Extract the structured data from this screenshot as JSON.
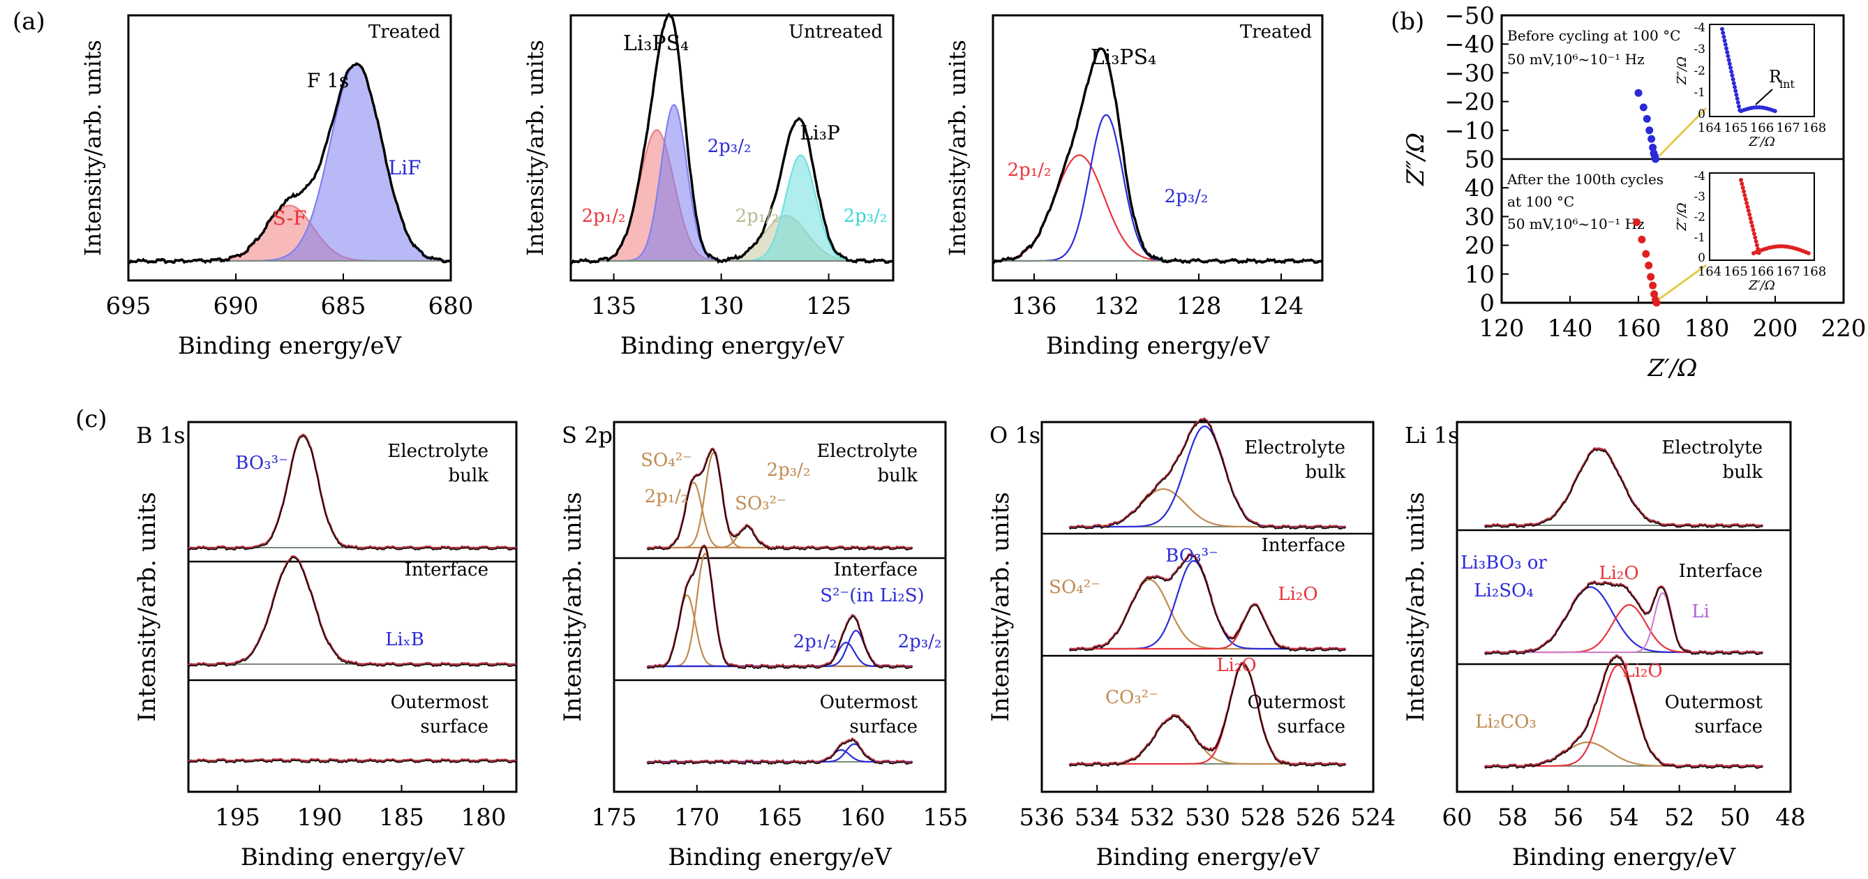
{
  "panel_labels": [
    "(a)",
    "(b)",
    "(c)"
  ],
  "colors": {
    "black": "#000000",
    "red": "#e8333b",
    "blue": "#2a2ad8",
    "violet": "#b06ad0",
    "tan": "#c08a50",
    "olive": "#8a8a3a",
    "cyan": "#3cd6d6",
    "grey": "#7a8a7a",
    "brown": "#9a4a3a"
  },
  "chart_data": [
    {
      "id": "a1",
      "type": "line",
      "panel": "(a)",
      "xlabel": "Binding energy/eV",
      "ylabel": "Intensity/arb. units",
      "xlim": [
        695,
        680
      ],
      "xticks": [
        695,
        690,
        685,
        680
      ],
      "reversed_x": true,
      "title": "Treated",
      "annotations": [
        "F 1s",
        "S-F",
        "LiF"
      ],
      "peaks": [
        {
          "name": "S-F",
          "center": 687.5,
          "height": 0.22,
          "width": 1.1,
          "color": "#f08080"
        },
        {
          "name": "LiF",
          "center": 684.4,
          "height": 0.78,
          "width": 1.2,
          "color": "#8080f0"
        }
      ]
    },
    {
      "id": "a2",
      "type": "line",
      "panel": "(a)",
      "xlabel": "Binding energy/eV",
      "ylabel": "Intensity/arb. units",
      "xlim": [
        137,
        122
      ],
      "xticks": [
        135,
        130,
        125
      ],
      "reversed_x": true,
      "title": "Untreated",
      "annotations": [
        "Li₃PS₄",
        "2p₃/₂",
        "2p₁/₂",
        "Li₃P",
        "2p₁/₂",
        "2p₃/₂"
      ],
      "peaks": [
        {
          "name": "2p1/2",
          "center": 133.0,
          "height": 0.52,
          "width": 0.8,
          "color": "#f08080"
        },
        {
          "name": "2p3/2",
          "center": 132.2,
          "height": 0.62,
          "width": 0.6,
          "color": "#8080f0"
        },
        {
          "name": "2p1/2",
          "center": 127.0,
          "height": 0.18,
          "width": 1.0,
          "color": "#c8c8a0"
        },
        {
          "name": "2p3/2",
          "center": 126.3,
          "height": 0.42,
          "width": 0.7,
          "color": "#70e0e0"
        }
      ]
    },
    {
      "id": "a3",
      "type": "line",
      "panel": "(a)",
      "xlabel": "Binding energy/eV",
      "ylabel": "Intensity/arb. units",
      "xlim": [
        138,
        122
      ],
      "xticks": [
        136,
        132,
        128,
        124
      ],
      "reversed_x": true,
      "title": "Treated",
      "annotations": [
        "Li₃PS₄",
        "2p₁/₂",
        "2p₃/₂"
      ],
      "peaks": [
        {
          "name": "2p1/2",
          "center": 133.8,
          "height": 0.42,
          "width": 1.2,
          "color": "#e8333b"
        },
        {
          "name": "2p3/2",
          "center": 132.5,
          "height": 0.58,
          "width": 0.8,
          "color": "#2a2ad8"
        }
      ]
    },
    {
      "id": "b",
      "type": "scatter",
      "panel": "(b)",
      "xlabel": "Z′/Ω",
      "ylabel": "Z″/Ω",
      "xlim": [
        120,
        220
      ],
      "xticks": [
        120,
        140,
        160,
        180,
        200,
        220
      ],
      "top_yticks": [
        "−50",
        "−40",
        "−30",
        "−20",
        "−10",
        "50"
      ],
      "bottom_yticks": [
        "40",
        "30",
        "20",
        "10",
        "0"
      ],
      "top_note": [
        "Before cycling at 100 °C",
        "50 mV,10⁶~10⁻¹ Hz"
      ],
      "bottom_note": [
        "After the 100th cycles",
        "at 100 °C",
        "50 mV,10⁶~10⁻¹ Hz"
      ],
      "inset_xticks": [
        "164",
        "165",
        "166",
        "167",
        "168"
      ],
      "inset_yticks": [
        "-4",
        "-3",
        "-2",
        "-1",
        "0"
      ],
      "inset_xlabel": "Z′/Ω",
      "inset_ylabel": "Z″/Ω",
      "inset_annotation": "R_int",
      "top_series": {
        "color": "#2a2ad8",
        "x": [
          160,
          161.5,
          162.5,
          163.2,
          163.8,
          164.2,
          164.5,
          164.8,
          165.0
        ],
        "y": [
          -23,
          -18,
          -14,
          -10,
          -7,
          -4,
          -2,
          -1,
          0
        ]
      },
      "bottom_series": {
        "color": "#e02020",
        "x": [
          159.5,
          161,
          162.2,
          163,
          163.6,
          164.2,
          164.6,
          165,
          165.3
        ],
        "y": [
          -28,
          -22,
          -17,
          -13,
          -9,
          -6,
          -3,
          -1,
          0
        ]
      }
    },
    {
      "id": "c1",
      "type": "line",
      "panel": "(c)",
      "title": "B 1s",
      "xlabel": "Binding energy/eV",
      "ylabel": "Intensity/arb. units",
      "xlim": [
        198,
        178
      ],
      "xticks": [
        195,
        190,
        185,
        180
      ],
      "reversed_x": true,
      "layers": [
        {
          "label": [
            "Electrolyte",
            "bulk"
          ],
          "peaks": [
            {
              "center": 191.0,
              "height": 0.9,
              "width": 0.9,
              "color": "#9a4a3a"
            }
          ],
          "annotations": [
            "BO₃³⁻"
          ]
        },
        {
          "label": [
            "Interface"
          ],
          "peaks": [
            {
              "center": 191.6,
              "height": 0.85,
              "width": 1.2,
              "color": "#9a4a3a"
            }
          ],
          "annotations": [
            "LiₓB"
          ]
        },
        {
          "label": [
            "Outermost",
            "surface"
          ],
          "peaks": [],
          "annotations": []
        }
      ]
    },
    {
      "id": "c2",
      "type": "line",
      "panel": "(c)",
      "title": "S 2p",
      "xlabel": "Binding energy/eV",
      "ylabel": "Intensity/arb. units",
      "xlim": [
        175,
        155
      ],
      "xticks": [
        175,
        170,
        165,
        160,
        155
      ],
      "reversed_x": true,
      "layers": [
        {
          "label": [
            "Electrolyte",
            "bulk"
          ],
          "peaks": [
            {
              "center": 170.2,
              "height": 0.55,
              "width": 0.5,
              "color": "#c08a50"
            },
            {
              "center": 169.0,
              "height": 0.8,
              "width": 0.5,
              "color": "#c08a50"
            },
            {
              "center": 167.0,
              "height": 0.18,
              "width": 0.5,
              "color": "#c08a50"
            }
          ],
          "annotations": [
            "SO₄²⁻",
            "2p₃/₂",
            "2p₁/₂",
            "SO₃²⁻"
          ]
        },
        {
          "label": [
            "Interface"
          ],
          "peaks": [
            {
              "center": 170.6,
              "height": 0.6,
              "width": 0.5,
              "color": "#c08a50"
            },
            {
              "center": 169.5,
              "height": 0.95,
              "width": 0.5,
              "color": "#c08a50"
            },
            {
              "center": 161.0,
              "height": 0.2,
              "width": 0.5,
              "color": "#2a2ad8"
            },
            {
              "center": 160.4,
              "height": 0.3,
              "width": 0.5,
              "color": "#2a2ad8"
            }
          ],
          "annotations": [
            "S²⁻(in Li₂S)",
            "2p₁/₂",
            "2p₃/₂"
          ]
        },
        {
          "label": [
            "Outermost",
            "surface"
          ],
          "peaks": [
            {
              "center": 161.3,
              "height": 0.1,
              "width": 0.5,
              "color": "#2a2ad8"
            },
            {
              "center": 160.5,
              "height": 0.15,
              "width": 0.5,
              "color": "#2a2ad8"
            }
          ],
          "annotations": []
        }
      ]
    },
    {
      "id": "c3",
      "type": "line",
      "panel": "(c)",
      "title": "O 1s",
      "xlabel": "Binding energy/eV",
      "ylabel": "Intensity/arb. units",
      "xlim": [
        536,
        524
      ],
      "xticks": [
        536,
        534,
        532,
        530,
        528,
        526,
        524
      ],
      "reversed_x": true,
      "layers": [
        {
          "label": [
            "Electrolyte",
            "bulk"
          ],
          "peaks": [
            {
              "center": 531.6,
              "height": 0.3,
              "width": 0.8,
              "color": "#c08a50"
            },
            {
              "center": 530.1,
              "height": 0.8,
              "width": 0.7,
              "color": "#2a2ad8"
            }
          ],
          "annotations": []
        },
        {
          "label": [
            "Interface"
          ],
          "peaks": [
            {
              "center": 532.1,
              "height": 0.55,
              "width": 0.7,
              "color": "#c08a50"
            },
            {
              "center": 530.5,
              "height": 0.7,
              "width": 0.6,
              "color": "#2a2ad8"
            },
            {
              "center": 528.3,
              "height": 0.35,
              "width": 0.4,
              "color": "#e8333b"
            }
          ],
          "annotations": [
            "SO₄²⁻",
            "BO₃³⁻",
            "Li₂O"
          ]
        },
        {
          "label": [
            "Outermost",
            "surface"
          ],
          "peaks": [
            {
              "center": 531.2,
              "height": 0.38,
              "width": 0.7,
              "color": "#c08a50"
            },
            {
              "center": 528.7,
              "height": 0.8,
              "width": 0.5,
              "color": "#e8333b"
            }
          ],
          "annotations": [
            "Li₂O",
            "CO₃²⁻"
          ]
        }
      ]
    },
    {
      "id": "c4",
      "type": "line",
      "panel": "(c)",
      "title": "Li 1s",
      "xlabel": "Binding energy/eV",
      "ylabel": "Intensity/arb. units",
      "xlim": [
        60,
        48
      ],
      "xticks": [
        60,
        58,
        56,
        54,
        52,
        50,
        48
      ],
      "reversed_x": true,
      "layers": [
        {
          "label": [
            "Electrolyte",
            "bulk"
          ],
          "peaks": [
            {
              "center": 54.9,
              "height": 0.65,
              "width": 0.8,
              "color": "#9a4a3a"
            }
          ],
          "annotations": []
        },
        {
          "label": [
            "Interface"
          ],
          "peaks": [
            {
              "center": 55.2,
              "height": 0.55,
              "width": 0.8,
              "color": "#2a2ad8"
            },
            {
              "center": 53.8,
              "height": 0.4,
              "width": 0.6,
              "color": "#e8333b"
            },
            {
              "center": 52.6,
              "height": 0.5,
              "width": 0.3,
              "color": "#d080d0"
            }
          ],
          "annotations": [
            "Li₃BO₃ or",
            "Li₂SO₄",
            "Li₂O",
            "Li"
          ]
        },
        {
          "label": [
            "Outermost",
            "surface"
          ],
          "peaks": [
            {
              "center": 55.3,
              "height": 0.2,
              "width": 0.8,
              "color": "#c08a50"
            },
            {
              "center": 54.2,
              "height": 0.85,
              "width": 0.6,
              "color": "#e8333b"
            }
          ],
          "annotations": [
            "Li₂O",
            "Li₂CO₃"
          ]
        }
      ]
    }
  ]
}
